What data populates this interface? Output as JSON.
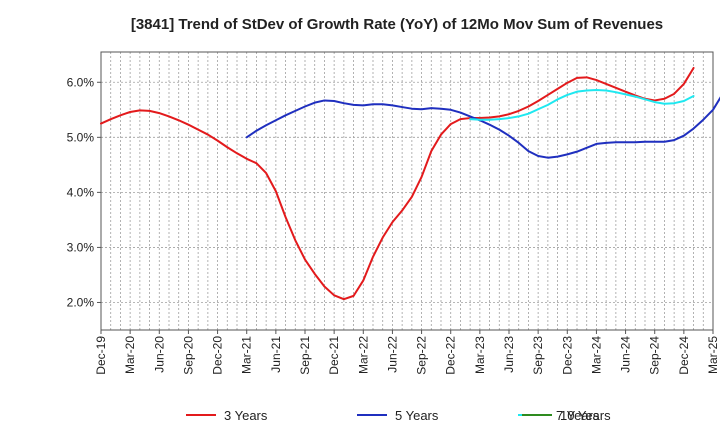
{
  "chart_data": {
    "type": "line",
    "title": "[3841]  Trend of StDev of Growth Rate (YoY) of 12Mo Mov Sum of Revenues",
    "xlabel": "",
    "ylabel": "",
    "ylim": [
      1.5,
      6.55
    ],
    "x_tick_labels": [
      "Dec-19",
      "Mar-20",
      "Jun-20",
      "Sep-20",
      "Dec-20",
      "Mar-21",
      "Jun-21",
      "Sep-21",
      "Dec-21",
      "Mar-22",
      "Jun-22",
      "Sep-22",
      "Dec-22",
      "Mar-23",
      "Jun-23",
      "Sep-23",
      "Dec-23",
      "Mar-24",
      "Jun-24",
      "Sep-24",
      "Dec-24",
      "Mar-25"
    ],
    "y_ticks": [
      2.0,
      3.0,
      4.0,
      5.0,
      6.0
    ],
    "y_tick_labels": [
      "2.0%",
      "3.0%",
      "4.0%",
      "5.0%",
      "6.0%"
    ],
    "series": [
      {
        "name": "3 Years",
        "color": "#e31a1c",
        "start_index": 0,
        "values": [
          5.25,
          5.33,
          5.4,
          5.46,
          5.49,
          5.48,
          5.44,
          5.38,
          5.31,
          5.23,
          5.14,
          5.05,
          4.94,
          4.82,
          4.71,
          4.61,
          4.53,
          4.35,
          4.02,
          3.55,
          3.13,
          2.78,
          2.52,
          2.29,
          2.13,
          2.06,
          2.12,
          2.4,
          2.83,
          3.18,
          3.46,
          3.67,
          3.92,
          4.28,
          4.75,
          5.05,
          5.24,
          5.33,
          5.35,
          5.35,
          5.36,
          5.38,
          5.42,
          5.48,
          5.56,
          5.66,
          5.77,
          5.88,
          5.99,
          6.08,
          6.09,
          6.04,
          5.97,
          5.9,
          5.83,
          5.76,
          5.7,
          5.67,
          5.7,
          5.79,
          5.97,
          6.26
        ]
      },
      {
        "name": "5 Years",
        "color": "#1f2fbf",
        "start_index": 15,
        "values": [
          5.0,
          5.12,
          5.22,
          5.31,
          5.4,
          5.48,
          5.56,
          5.63,
          5.67,
          5.66,
          5.62,
          5.59,
          5.58,
          5.6,
          5.6,
          5.58,
          5.55,
          5.52,
          5.51,
          5.53,
          5.52,
          5.5,
          5.45,
          5.38,
          5.31,
          5.23,
          5.14,
          5.03,
          4.9,
          4.75,
          4.66,
          4.63,
          4.65,
          4.69,
          4.74,
          4.81,
          4.88,
          4.9,
          4.91,
          4.91,
          4.91,
          4.92,
          4.92,
          4.92,
          4.95,
          5.03,
          5.16,
          5.32,
          5.5,
          5.79
        ]
      },
      {
        "name": "7 Years",
        "color": "#1ee8f0",
        "start_index": 38,
        "values": [
          5.33,
          5.32,
          5.32,
          5.33,
          5.35,
          5.38,
          5.43,
          5.51,
          5.59,
          5.69,
          5.77,
          5.83,
          5.85,
          5.86,
          5.85,
          5.82,
          5.78,
          5.74,
          5.69,
          5.64,
          5.61,
          5.62,
          5.66,
          5.75
        ]
      },
      {
        "name": "10 Years",
        "color": "#2e8b1f",
        "start_index": 0,
        "values": []
      }
    ]
  }
}
